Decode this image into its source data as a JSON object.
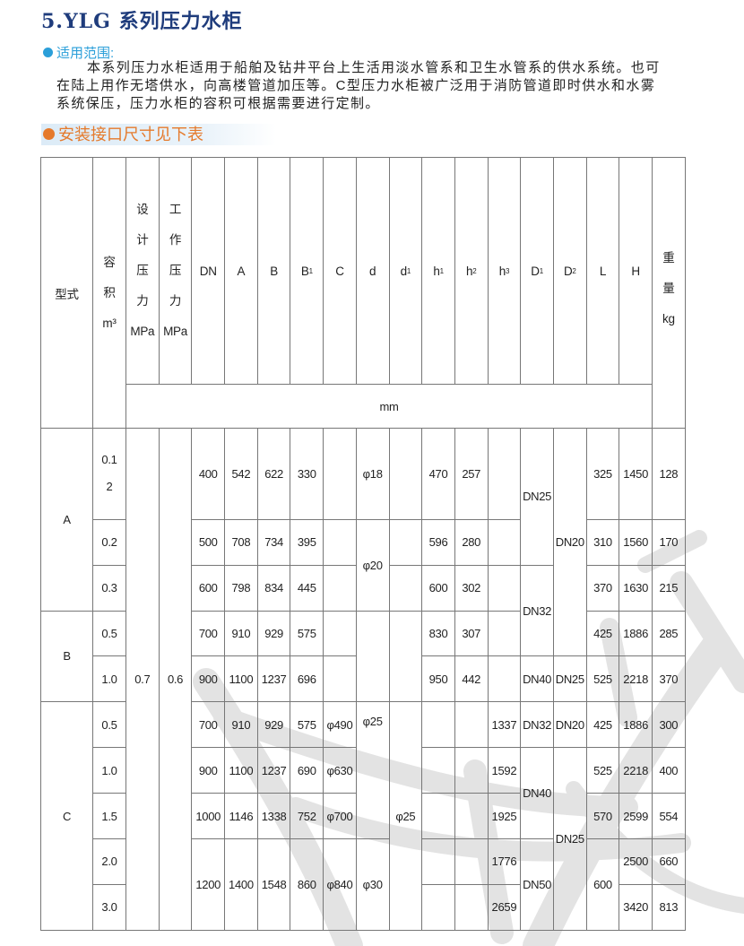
{
  "title": "5.YLG 系列压力水柜",
  "scope": {
    "heading": "适用范围:",
    "lines": [
      "本系列压力水柜适用于船舶及钻井平台上生活用淡水管系和卫生水管系的供水系统。也可",
      "在陆上用作无塔供水，向高楼管道加压等。C型压力水柜被广泛用于消防管道即时供水和水雾",
      "系统保压，压力水柜的容积可根据需要进行定制。"
    ]
  },
  "table_heading": "安装接口尺寸见下表",
  "colors": {
    "title": "#1f3c7c",
    "scope_bullet": "#2b9fd9",
    "table_bullet": "#e57a2c",
    "grid": "#777777"
  },
  "table": {
    "unit_row": "mm",
    "columns": [
      {
        "key": "type",
        "header": "型式",
        "values": [
          "A",
          "B",
          "C"
        ]
      },
      {
        "key": "volume",
        "header": "容\n积\nm³",
        "values": [
          "0.1\n2",
          "0.2",
          "0.3",
          "0.5",
          "1.0",
          "0.5",
          "1.0",
          "1.5",
          "2.0",
          "3.0"
        ]
      },
      {
        "key": "design_pressure",
        "header": "设\n计\n压\n力\nMPa",
        "values": [
          "0.7"
        ]
      },
      {
        "key": "working_pressure",
        "header": "工\n作\n压\n力\nMPa",
        "values": [
          "0.6"
        ]
      },
      {
        "key": "DN",
        "header": "DN",
        "values": [
          "400",
          "500",
          "600",
          "700",
          "900",
          "700",
          "900",
          "1000",
          "1200"
        ]
      },
      {
        "key": "A",
        "header": "A",
        "values": [
          "542",
          "708",
          "798",
          "910",
          "1100",
          "910",
          "1100",
          "1146",
          "1400"
        ]
      },
      {
        "key": "B",
        "header": "B",
        "values": [
          "622",
          "734",
          "834",
          "929",
          "1237",
          "929",
          "1237",
          "1338",
          "1548"
        ]
      },
      {
        "key": "B1",
        "header": "B",
        "sub": "1",
        "values": [
          "330",
          "395",
          "445",
          "575",
          "696",
          "575",
          "690",
          "752",
          "860"
        ]
      },
      {
        "key": "C",
        "header": "C",
        "values": [
          "",
          "",
          "",
          "",
          "",
          "φ490",
          "φ630",
          "φ700",
          "φ840"
        ]
      },
      {
        "key": "d",
        "header": "d",
        "values": [
          "φ18",
          "φ20",
          "",
          "φ25",
          "φ30"
        ]
      },
      {
        "key": "d1",
        "header": "d",
        "sub": "1",
        "values": [
          "",
          "",
          "",
          "",
          "φ25"
        ]
      },
      {
        "key": "h1",
        "header": "h",
        "sub": "1",
        "values": [
          "470",
          "596",
          "600",
          "830",
          "950",
          "",
          "",
          "",
          "",
          ""
        ]
      },
      {
        "key": "h2",
        "header": "h",
        "sub": "2",
        "values": [
          "257",
          "280",
          "302",
          "307",
          "442",
          "",
          "",
          "",
          "",
          ""
        ]
      },
      {
        "key": "h3",
        "header": "h",
        "sub": "3",
        "values": [
          "",
          "",
          "",
          "",
          "",
          "1337",
          "1592",
          "1925",
          "1776",
          "2659"
        ]
      },
      {
        "key": "D1",
        "header": "D",
        "sub": "1",
        "values": [
          "DN25",
          "DN32",
          "DN40",
          "DN32",
          "DN40",
          "DN50"
        ]
      },
      {
        "key": "D2",
        "header": "D",
        "sub": "2",
        "values": [
          "DN20",
          "DN25",
          "DN20",
          "DN25"
        ]
      },
      {
        "key": "L",
        "header": "L",
        "values": [
          "325",
          "310",
          "370",
          "425",
          "525",
          "425",
          "525",
          "570",
          "600"
        ]
      },
      {
        "key": "H",
        "header": "H",
        "values": [
          "1450",
          "1560",
          "1630",
          "1886",
          "2218",
          "1886",
          "2218",
          "2599",
          "2500",
          "3420"
        ]
      },
      {
        "key": "weight",
        "header": "重\n量\nkg",
        "values": [
          "128",
          "170",
          "215",
          "285",
          "370",
          "300",
          "400",
          "554",
          "660",
          "813"
        ]
      }
    ]
  }
}
